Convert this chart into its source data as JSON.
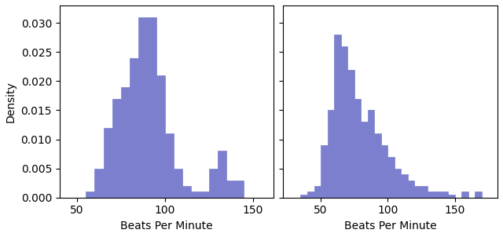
{
  "bar_color": "#7b7fce",
  "bar_edgecolor": "#7b7fce",
  "xlabel": "Beats Per Minute",
  "ylabel": "Density",
  "plot1": {
    "bin_left": [
      55,
      60,
      65,
      70,
      75,
      80,
      85,
      90,
      95,
      100,
      105,
      110,
      115,
      120,
      125,
      130,
      135,
      140
    ],
    "densities": [
      0.001,
      0.005,
      0.012,
      0.017,
      0.019,
      0.024,
      0.031,
      0.031,
      0.021,
      0.011,
      0.005,
      0.002,
      0.001,
      0.001,
      0.005,
      0.008,
      0.003,
      0.003
    ],
    "bin_width": 5
  },
  "plot2": {
    "bin_left": [
      35,
      40,
      45,
      50,
      55,
      60,
      65,
      70,
      75,
      80,
      85,
      90,
      95,
      100,
      105,
      110,
      115,
      120,
      125,
      130,
      135,
      140,
      145,
      155,
      165
    ],
    "densities": [
      0.0005,
      0.001,
      0.002,
      0.009,
      0.015,
      0.028,
      0.026,
      0.022,
      0.017,
      0.013,
      0.015,
      0.011,
      0.009,
      0.007,
      0.005,
      0.004,
      0.003,
      0.002,
      0.002,
      0.001,
      0.001,
      0.001,
      0.0005,
      0.001,
      0.001
    ],
    "bin_width": 5
  },
  "ylim1": [
    0,
    0.033
  ],
  "ylim2": [
    0,
    0.033
  ],
  "yticks": [
    0.0,
    0.005,
    0.01,
    0.015,
    0.02,
    0.025,
    0.03
  ],
  "xlim1": [
    40,
    162
  ],
  "xlim2": [
    22,
    182
  ],
  "xticks1": [
    50,
    100,
    150
  ],
  "xticks2": [
    50,
    100,
    150
  ]
}
